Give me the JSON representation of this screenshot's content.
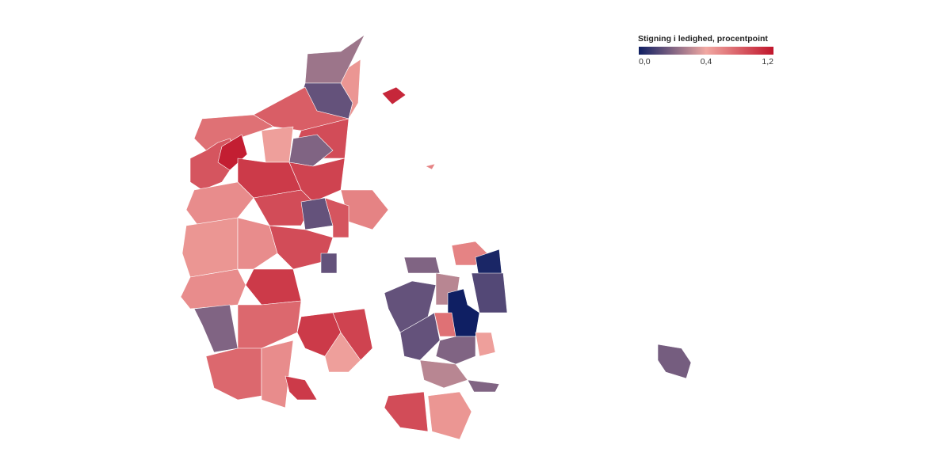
{
  "legend": {
    "title": "Stigning i ledighed, procentpoint",
    "ticks": [
      {
        "value": 0,
        "label": "0,0"
      },
      {
        "value": 0.4,
        "label": "0,4"
      },
      {
        "value": 1.2,
        "label": "1,2"
      }
    ],
    "colors": [
      "#0f1f63",
      "#f1a8a2",
      "#c0152b"
    ]
  },
  "regions": {
    "values": [
      0.25,
      0.15,
      0.5,
      0.8,
      0.7,
      0.85,
      1.15,
      0.9,
      0.2,
      0.45,
      1.0,
      0.95,
      0.6,
      0.55,
      0.9,
      0.15,
      0.85,
      0.5,
      0.55,
      0.9,
      0.15,
      1.0,
      0.55,
      0.2,
      0.75,
      0.75,
      0.55,
      1.0,
      1.0,
      0.95,
      0.45,
      0.2,
      0.15,
      0.3,
      0.6,
      0.02,
      0.0,
      0.12,
      0.7,
      0.15,
      0.2,
      0.45,
      0.3,
      0.2,
      0.9,
      0.5,
      0.18,
      1.1,
      0.6
    ]
  }
}
